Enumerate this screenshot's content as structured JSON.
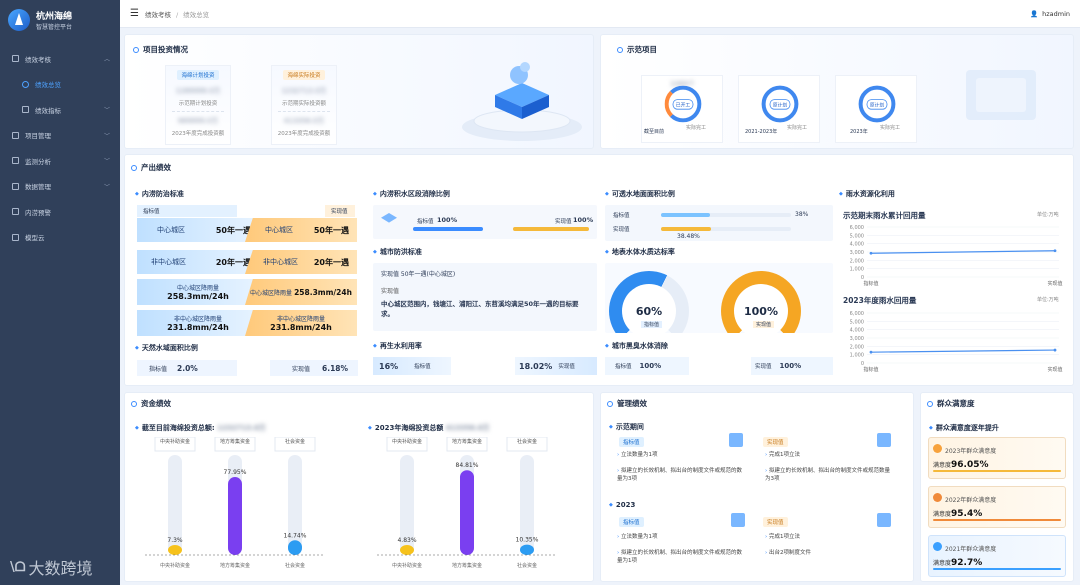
{
  "app": {
    "name": "杭州海绵",
    "subtitle": "智慧管控平台"
  },
  "sidebar": {
    "items": [
      {
        "label": "绩效考核",
        "icon": "flag-icon",
        "expanded": true
      },
      {
        "label": "绩效总览",
        "icon": "target-icon",
        "active": true
      },
      {
        "label": "绩效指标",
        "icon": "grid-icon"
      },
      {
        "label": "项目管理",
        "icon": "folder-icon"
      },
      {
        "label": "监测分析",
        "icon": "monitor-icon"
      },
      {
        "label": "数据管理",
        "icon": "database-icon"
      },
      {
        "label": "内涝预警",
        "icon": "alarm-icon"
      },
      {
        "label": "模型云",
        "icon": "cloud-icon"
      }
    ]
  },
  "header": {
    "breadcrumb": [
      "绩效考核",
      "绩效总览"
    ],
    "user": "hzadmin"
  },
  "invest": {
    "title": "项目投资情况",
    "plan": {
      "tag": "海绵计划投资",
      "v1": "1289999.0万",
      "l1": "示范期计划投资",
      "v2": "989999.0万",
      "l2": "2023年度完成投资额"
    },
    "actual": {
      "tag": "海绵实际投资",
      "v1": "1232713.0万",
      "l1": "示范期实际投资额",
      "v2": "413356.0万",
      "l2": "2023年度完成投资额"
    }
  },
  "demo": {
    "title": "示范项目",
    "rings": [
      {
        "center": "已开工",
        "caption": "截至目前",
        "t1": "完工",
        "t2": "实际完工",
        "blurred": "1089个"
      },
      {
        "center": "原计划",
        "caption": "2021-2023年",
        "t1": "完工",
        "t2": "实际完工",
        "blurred": "1089个"
      },
      {
        "center": "原计划",
        "caption": "2023年",
        "t1": "完工",
        "t2": "实际完工",
        "blurred": "189个"
      }
    ]
  },
  "output": {
    "title": "产出绩效",
    "flood": {
      "title": "内涝防治标准",
      "tag_target": "指标值",
      "tag_actual": "实现值",
      "rows": [
        {
          "l": "中心城区",
          "v": "50年一遇",
          "r": "中心城区",
          "rv": "50年一遇"
        },
        {
          "l": "非中心城区",
          "v": "20年一遇",
          "r": "非中心城区",
          "rv": "20年一遇"
        },
        {
          "l": "中心城区降雨量",
          "v": "258.3mm/24h",
          "r": "中心城区降雨量",
          "rv": "258.3mm/24h"
        },
        {
          "l": "非中心城区降雨量",
          "v": "231.8mm/24h",
          "r": "非中心城区降雨量",
          "rv": "231.8mm/24h"
        }
      ]
    },
    "shoreline": {
      "title": "天然水域面积比例",
      "target_label": "指标值",
      "target": "2.0%",
      "actual_label": "实现值",
      "actual": "6.18%"
    },
    "waterlog": {
      "title": "内涝积水区段消除比例",
      "target_label": "指标值",
      "target_value": "100%",
      "actual_label": "实现值",
      "actual_value": "100%",
      "target_fill": 1.0,
      "actual_fill": 1.0
    },
    "city": {
      "title": "城市防洪标准",
      "line1": "实现值 50年一遇(中心城区)",
      "line2": "实现值",
      "text": "中心城区范围内，钱塘江、浦阳江、东苕溪均满足50年一遇的目标要求。"
    },
    "recycle": {
      "title": "再生水利用率",
      "target": "16%",
      "target_label": "指标值",
      "actual": "18.02%",
      "actual_label": "实现值"
    },
    "permeable": {
      "title": "可透水地面面积比例",
      "target_label": "指标值",
      "target": "38%",
      "actual_label": "实现值",
      "actual": "38.48%",
      "target_fill": 0.38,
      "actual_fill": 0.3848
    },
    "surface": {
      "title": "地表水体水质达标率",
      "g1": "60%",
      "g1_label": "指标值",
      "g1_fill": 0.6,
      "g2": "100%",
      "g2_label": "实现值",
      "g2_fill": 1.0
    },
    "blackwater": {
      "title": "城市黑臭水体消除",
      "target_label": "指标值",
      "target": "100%",
      "actual_label": "实现值",
      "actual": "100%"
    },
    "rain": {
      "title": "雨水资源化利用",
      "chart1_title": "示范期末雨水累计回用量",
      "chart2_title": "2023年度雨水回用量",
      "unit": "单位:万吨",
      "yticks": [
        "6,000",
        "5,000",
        "4,000",
        "3,000",
        "2,000",
        "1,000",
        "0"
      ],
      "xcats": [
        "指标值",
        "实现值"
      ]
    }
  },
  "chart_data": [
    {
      "type": "line",
      "title": "示范期末雨水累计回用量",
      "categories": [
        "指标值",
        "实现值"
      ],
      "ylim": [
        0,
        6000
      ],
      "series": [
        {
          "values": [
            2850,
            3150
          ]
        }
      ]
    },
    {
      "type": "line",
      "title": "2023年度雨水回用量",
      "categories": [
        "指标值",
        "实现值"
      ],
      "ylim": [
        0,
        6000
      ],
      "series": [
        {
          "values": [
            1300,
            1550
          ]
        }
      ]
    },
    {
      "type": "bar",
      "title": "截至目前海绵投资总额",
      "categories": [
        "中央补助资金",
        "地方筹集资金",
        "社会资金"
      ],
      "values": [
        7.3,
        77.95,
        14.74
      ],
      "ylim": [
        0,
        100
      ]
    },
    {
      "type": "bar",
      "title": "2023年海绵投资总额",
      "categories": [
        "中央补助资金",
        "地方筹集资金",
        "社会资金"
      ],
      "values": [
        4.83,
        84.81,
        10.35
      ],
      "ylim": [
        0,
        100
      ]
    }
  ],
  "funds": {
    "title": "资金绩效",
    "left": {
      "title": "截至目前海绵投资总额:",
      "blur": "1232713.0万",
      "boxes": [
        "中央补助资金",
        "地方筹集资金",
        "社会资金"
      ],
      "pcts": [
        "7.3%",
        "77.95%",
        "14.74%"
      ]
    },
    "right": {
      "title": "2023年海绵投资总额",
      "blur": "413356.0万",
      "boxes": [
        "中央补助资金",
        "地方筹集资金",
        "社会资金"
      ],
      "pcts": [
        "4.83%",
        "84.81%",
        "10.35%"
      ]
    },
    "colors": [
      "#f6c21c",
      "#7a3ff0",
      "#2c9cf2"
    ]
  },
  "mgmt": {
    "title": "管理绩效",
    "p1": "示范期间",
    "p2": "2023",
    "target_tag": "指标值",
    "actual_tag": "实现值",
    "a1": [
      "立法数量为1项",
      "拟建立的长效机制、拟出台的制度文件或规范的数量为3项"
    ],
    "b1": [
      "完成1项立法",
      "拟建立的长效机制、拟出台的制度文件或规范数量为3项"
    ],
    "a2": [
      "立法数量为1项",
      "拟建立的长效机制、拟出台的制度文件或规范的数量为1项"
    ],
    "b2": [
      "完成1项立法",
      "出台2项制度文件"
    ]
  },
  "satisfaction": {
    "title": "群众满意度",
    "subtitle": "群众满意度逐年提升",
    "items": [
      {
        "year": "2023年群众满意度",
        "label": "满意度",
        "value": "96.05%",
        "color": "#f5b93a"
      },
      {
        "year": "2022年群众满意度",
        "label": "满意度",
        "value": "95.4%",
        "color": "#f08a3a"
      },
      {
        "year": "2021年群众满意度",
        "label": "满意度",
        "value": "92.7%",
        "color": "#3ba0ff"
      }
    ]
  },
  "watermark": "大数跨境"
}
